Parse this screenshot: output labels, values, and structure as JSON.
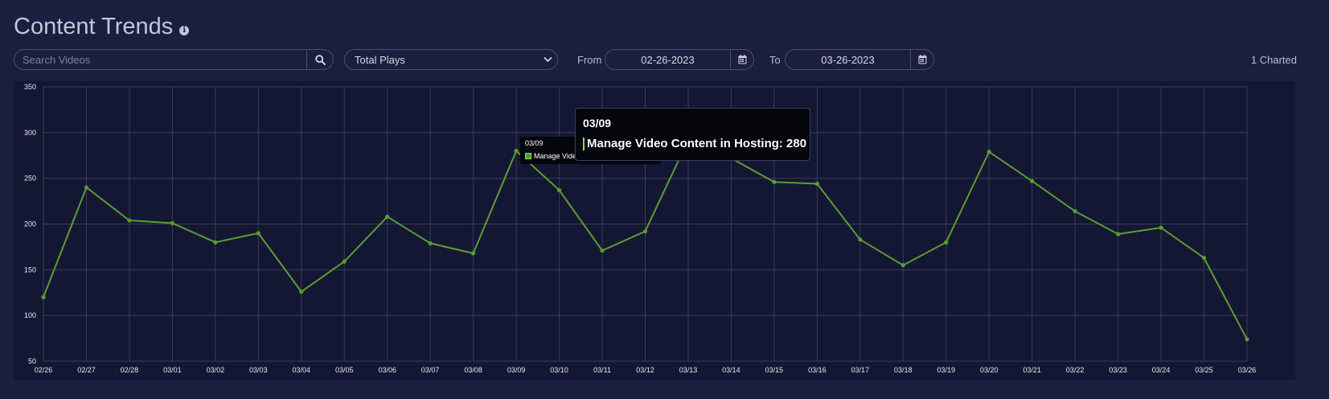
{
  "header": {
    "title": "Content Trends",
    "info_icon": "info-icon"
  },
  "search": {
    "placeholder": "Search Videos",
    "value": "",
    "icon": "search-icon"
  },
  "metric_select": {
    "selected": "Total Plays",
    "icon": "chevron-down-icon"
  },
  "date_range": {
    "from_label": "From",
    "from_value": "02-26-2023",
    "to_label": "To",
    "to_value": "03-26-2023",
    "icon": "calendar-icon"
  },
  "charted_count": "1 Charted",
  "colors": {
    "background": "#1b1e3f",
    "panel": "#141733",
    "line": "#5a9c34",
    "grid": "#393c55"
  },
  "tooltip": {
    "date": "03/09",
    "label": "Manage Video Content in Hosting: 280",
    "small_date": "03/09",
    "small_label": "Manage Vide"
  },
  "chart_data": {
    "type": "line",
    "x": [
      "02/26",
      "02/27",
      "02/28",
      "03/01",
      "03/02",
      "03/03",
      "03/04",
      "03/05",
      "03/06",
      "03/07",
      "03/08",
      "03/09",
      "03/10",
      "03/11",
      "03/12",
      "03/13",
      "03/14",
      "03/15",
      "03/16",
      "03/17",
      "03/18",
      "03/19",
      "03/20",
      "03/21",
      "03/22",
      "03/23",
      "03/24",
      "03/25",
      "03/26"
    ],
    "series": [
      {
        "values": [
          120,
          240,
          204,
          201,
          180,
          190,
          126,
          159,
          208,
          179,
          168,
          280,
          237,
          171,
          192,
          292,
          272,
          246,
          244,
          183,
          155,
          180,
          279,
          247,
          214,
          189,
          196,
          163,
          74
        ]
      }
    ],
    "ylim": [
      50,
      350
    ],
    "yticks": [
      50,
      100,
      150,
      200,
      250,
      300,
      350
    ],
    "grid": true
  }
}
